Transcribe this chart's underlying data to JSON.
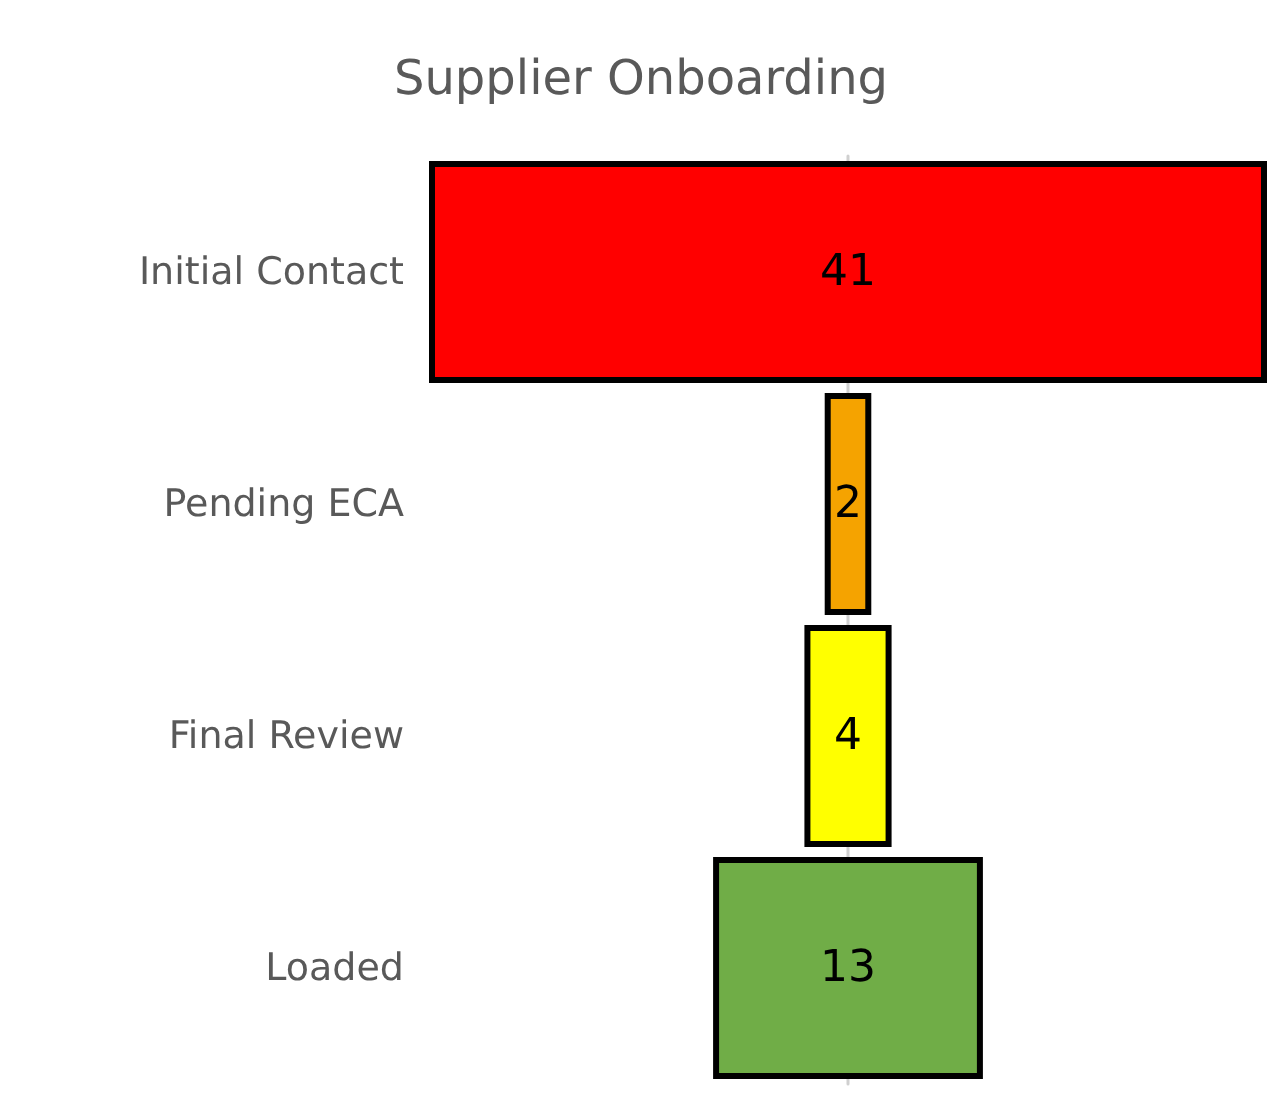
{
  "chart_data": {
    "type": "other",
    "title": "Supplier Onboarding",
    "categories": [
      "Initial Contact",
      "Pending ECA",
      "Final Review",
      "Loaded"
    ],
    "values": [
      41,
      2,
      4,
      13
    ],
    "colors": [
      "#ff0000",
      "#f5a300",
      "#ffff00",
      "#70ad47"
    ],
    "data_labels": true
  }
}
